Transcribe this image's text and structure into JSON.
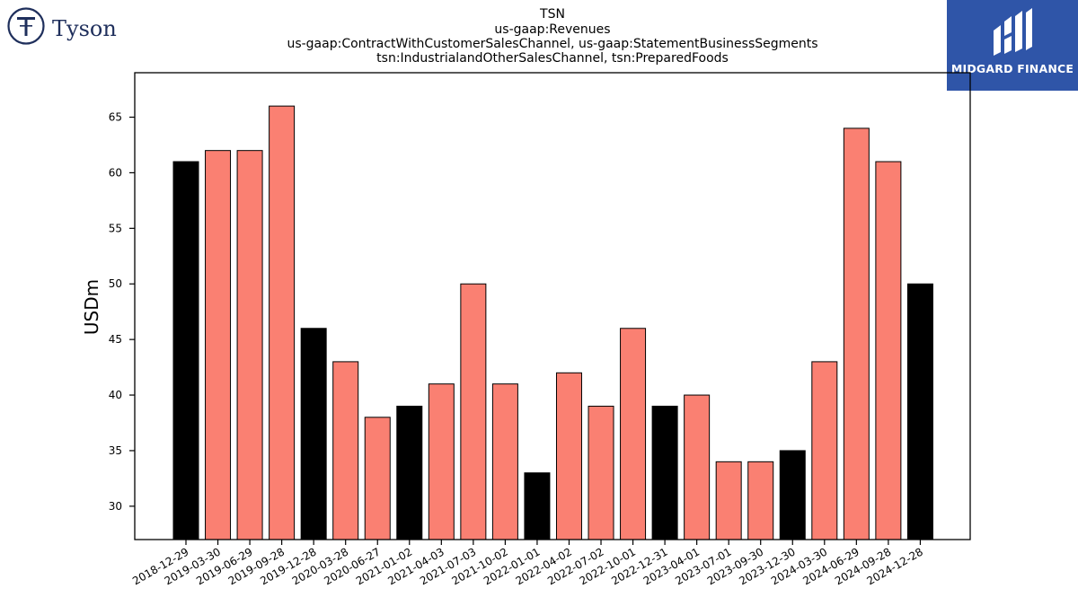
{
  "logos": {
    "tyson": {
      "name": "Tyson"
    },
    "midgard": {
      "name": "MIDGARD FINANCE",
      "background": "#2f55a8"
    }
  },
  "chart_data": {
    "type": "bar",
    "title_lines": [
      "TSN",
      "us-gaap:Revenues",
      "us-gaap:ContractWithCustomerSalesChannel, us-gaap:StatementBusinessSegments",
      "tsn:IndustrialandOtherSalesChannel, tsn:PreparedFoods"
    ],
    "xlabel": "",
    "ylabel": "USDm",
    "ylim": [
      27,
      69
    ],
    "yticks": [
      30,
      35,
      40,
      45,
      50,
      55,
      60,
      65
    ],
    "grid": false,
    "legend": "none",
    "colors": {
      "highlight": "#000000",
      "default": "#fa8072",
      "edge": "#000000"
    },
    "categories": [
      "2018-12-29",
      "2019-03-30",
      "2019-06-29",
      "2019-09-28",
      "2019-12-28",
      "2020-03-28",
      "2020-06-27",
      "2021-01-02",
      "2021-04-03",
      "2021-07-03",
      "2021-10-02",
      "2022-01-01",
      "2022-04-02",
      "2022-07-02",
      "2022-10-01",
      "2022-12-31",
      "2023-04-01",
      "2023-07-01",
      "2023-09-30",
      "2023-12-30",
      "2024-03-30",
      "2024-06-29",
      "2024-09-28",
      "2024-12-28"
    ],
    "values": [
      61,
      62,
      62,
      66,
      46,
      43,
      38,
      39,
      41,
      50,
      41,
      33,
      42,
      39,
      46,
      39,
      40,
      34,
      34,
      35,
      43,
      64,
      61,
      50
    ],
    "highlighted": [
      true,
      false,
      false,
      false,
      true,
      false,
      false,
      true,
      false,
      false,
      false,
      true,
      false,
      false,
      false,
      true,
      false,
      false,
      false,
      true,
      false,
      false,
      false,
      true
    ]
  }
}
